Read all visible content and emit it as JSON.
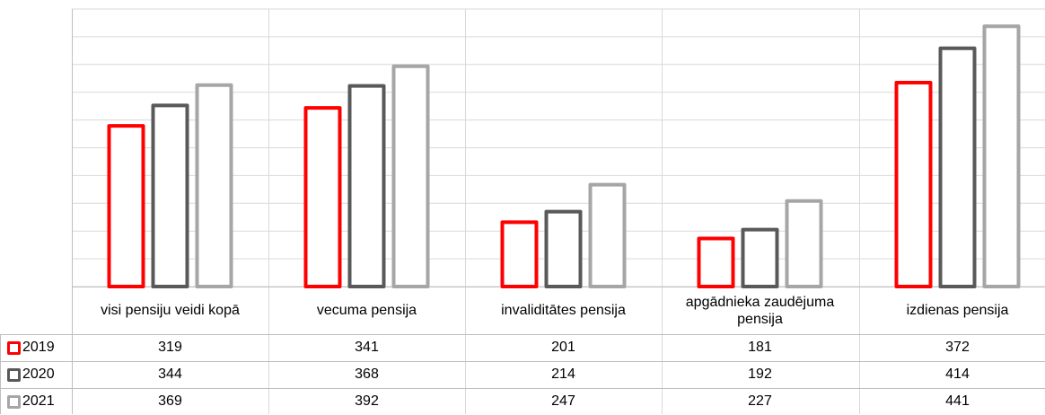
{
  "chart_data": {
    "type": "bar",
    "categories": [
      "visi pensiju veidi kopā",
      "vecuma pensija",
      "invaliditātes pensija",
      "apgādnieka zaudējuma pensija",
      "izdienas pensija"
    ],
    "series": [
      {
        "name": "2019",
        "values": [
          319,
          341,
          201,
          181,
          372
        ],
        "color": "#ff0000"
      },
      {
        "name": "2020",
        "values": [
          344,
          368,
          214,
          192,
          414
        ],
        "color": "#595959"
      },
      {
        "name": "2021",
        "values": [
          369,
          392,
          247,
          227,
          441
        ],
        "color": "#a6a6a6"
      }
    ],
    "ylim": [
      120,
      460
    ],
    "grid": true,
    "legend": "data table keys",
    "data_table": true
  }
}
